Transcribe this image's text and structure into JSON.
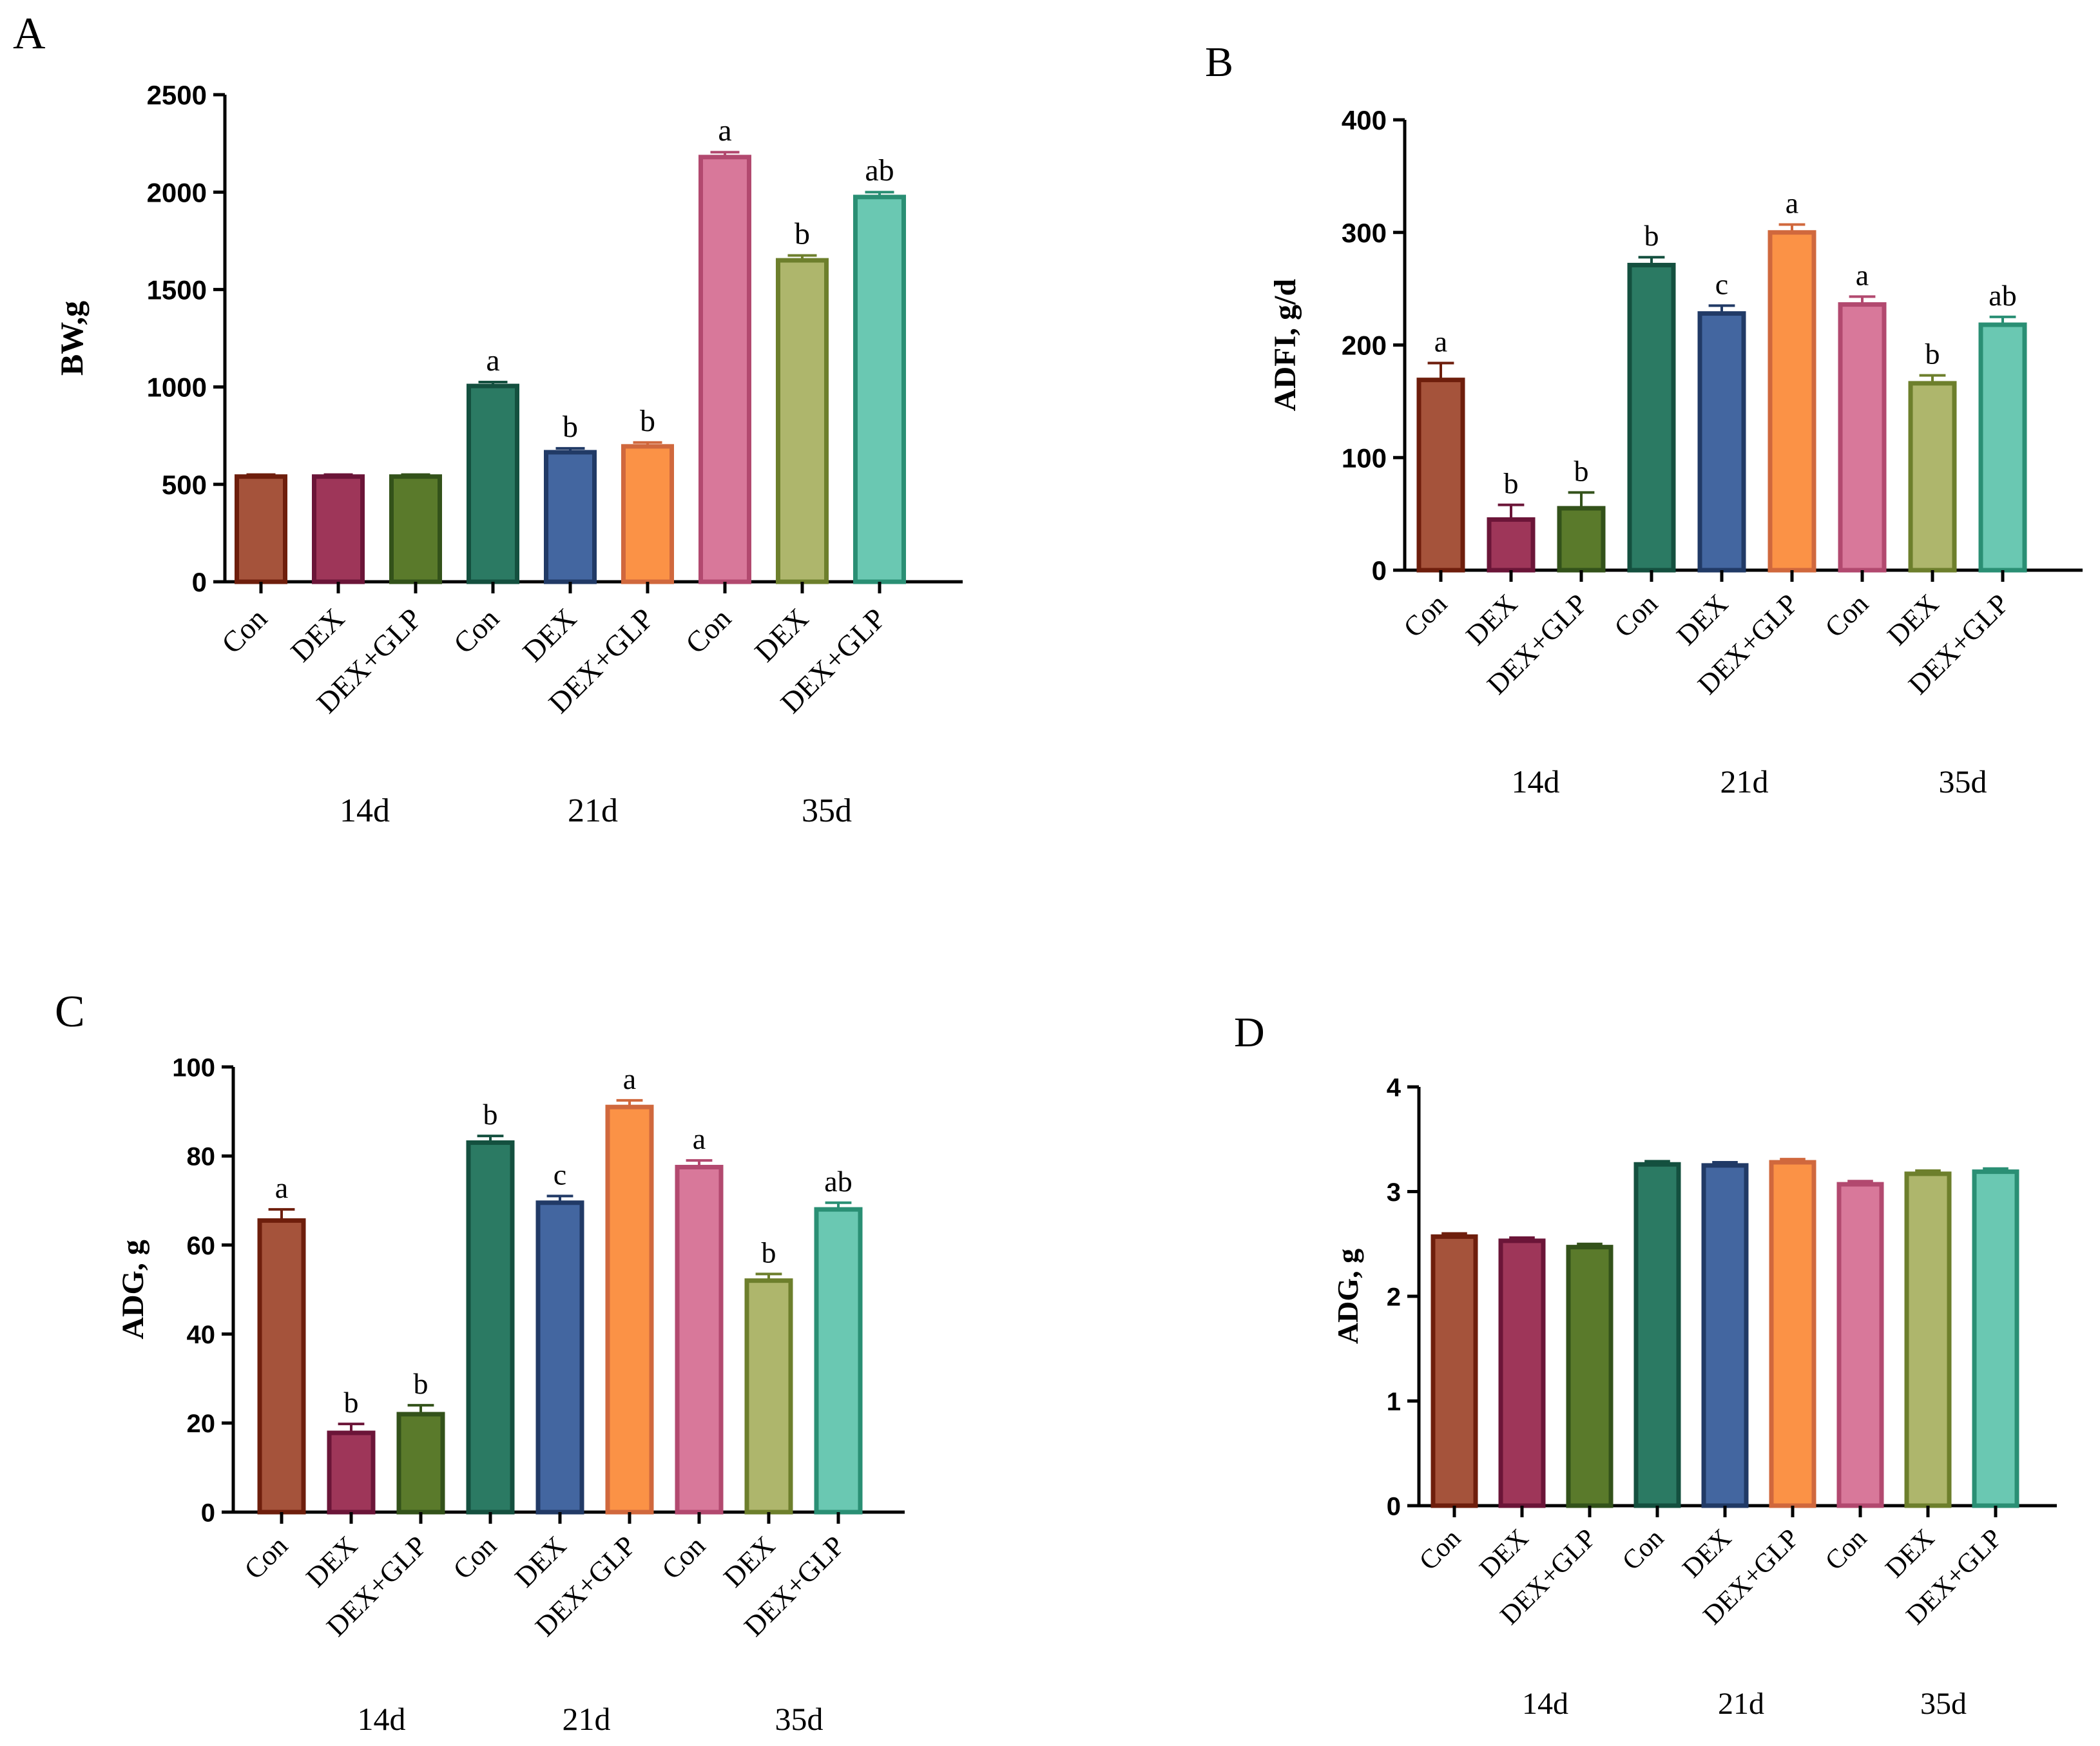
{
  "colors": {
    "fills": [
      "#a5533b",
      "#9e3659",
      "#5a7a2b",
      "#2b7a63",
      "#4366a0",
      "#fb9246",
      "#d8789a",
      "#aeb66c",
      "#6ac8b2"
    ],
    "strokes": [
      "#6e1e0c",
      "#6b1538",
      "#33521a",
      "#14503f",
      "#213a66",
      "#d0683d",
      "#b2496f",
      "#6d7f2c",
      "#2a8f74"
    ]
  },
  "chart_data": [
    {
      "panel": "A",
      "type": "bar",
      "ylabel": "BW,g",
      "ylim": [
        0,
        2500
      ],
      "yticks": [
        0,
        500,
        1000,
        1500,
        2000,
        2500
      ],
      "categories": [
        "Con",
        "DEX",
        "DEX+GLP",
        "Con",
        "DEX",
        "DEX+GLP",
        "Con",
        "DEX",
        "DEX+GLP"
      ],
      "values": [
        540,
        540,
        540,
        1005,
        665,
        695,
        2180,
        1650,
        1975
      ],
      "errors": [
        10,
        10,
        10,
        20,
        20,
        20,
        25,
        25,
        25
      ],
      "letters": [
        "",
        "",
        "",
        "a",
        "b",
        "b",
        "a",
        "b",
        "ab"
      ],
      "groups": [
        "14d",
        "21d",
        "35d"
      ]
    },
    {
      "panel": "B",
      "type": "bar",
      "ylabel": "ADFI, g/d",
      "ylim": [
        0,
        400
      ],
      "yticks": [
        0,
        100,
        200,
        300,
        400
      ],
      "categories": [
        "Con",
        "DEX",
        "DEX+GLP",
        "Con",
        "DEX",
        "DEX+GLP",
        "Con",
        "DEX",
        "DEX+GLP"
      ],
      "values": [
        169,
        45,
        55,
        271,
        228,
        300,
        236,
        166,
        218
      ],
      "errors": [
        15,
        13,
        14,
        7,
        7,
        7,
        7,
        7,
        7
      ],
      "letters": [
        "a",
        "b",
        "b",
        "b",
        "c",
        "a",
        "a",
        "b",
        "ab"
      ],
      "groups": [
        "14d",
        "21d",
        "35d"
      ]
    },
    {
      "panel": "C",
      "type": "bar",
      "ylabel": "ADG, g",
      "ylim": [
        0,
        100
      ],
      "yticks": [
        0,
        20,
        40,
        60,
        80,
        100
      ],
      "categories": [
        "Con",
        "DEX",
        "DEX+GLP",
        "Con",
        "DEX",
        "DEX+GLP",
        "Con",
        "DEX",
        "DEX+GLP"
      ],
      "values": [
        65.5,
        17.8,
        22,
        83,
        69.5,
        91,
        77.5,
        52,
        68
      ],
      "errors": [
        2.5,
        2,
        2,
        1.5,
        1.5,
        1.5,
        1.5,
        1.5,
        1.5
      ],
      "letters": [
        "a",
        "b",
        "b",
        "b",
        "c",
        "a",
        "a",
        "b",
        "ab"
      ],
      "groups": [
        "14d",
        "21d",
        "35d"
      ]
    },
    {
      "panel": "D",
      "type": "bar",
      "ylabel": "ADG, g",
      "ylim": [
        0,
        4
      ],
      "yticks": [
        0,
        1,
        2,
        3,
        4
      ],
      "categories": [
        "Con",
        "DEX",
        "DEX+GLP",
        "Con",
        "DEX",
        "DEX+GLP",
        "Con",
        "DEX",
        "DEX+GLP"
      ],
      "values": [
        2.57,
        2.53,
        2.47,
        3.26,
        3.25,
        3.28,
        3.07,
        3.17,
        3.19
      ],
      "errors": [
        0.03,
        0.03,
        0.03,
        0.03,
        0.03,
        0.03,
        0.03,
        0.03,
        0.03
      ],
      "letters": [
        "",
        "",
        "",
        "",
        "",
        "",
        "",
        "",
        ""
      ],
      "groups": [
        "14d",
        "21d",
        "35d"
      ]
    }
  ]
}
